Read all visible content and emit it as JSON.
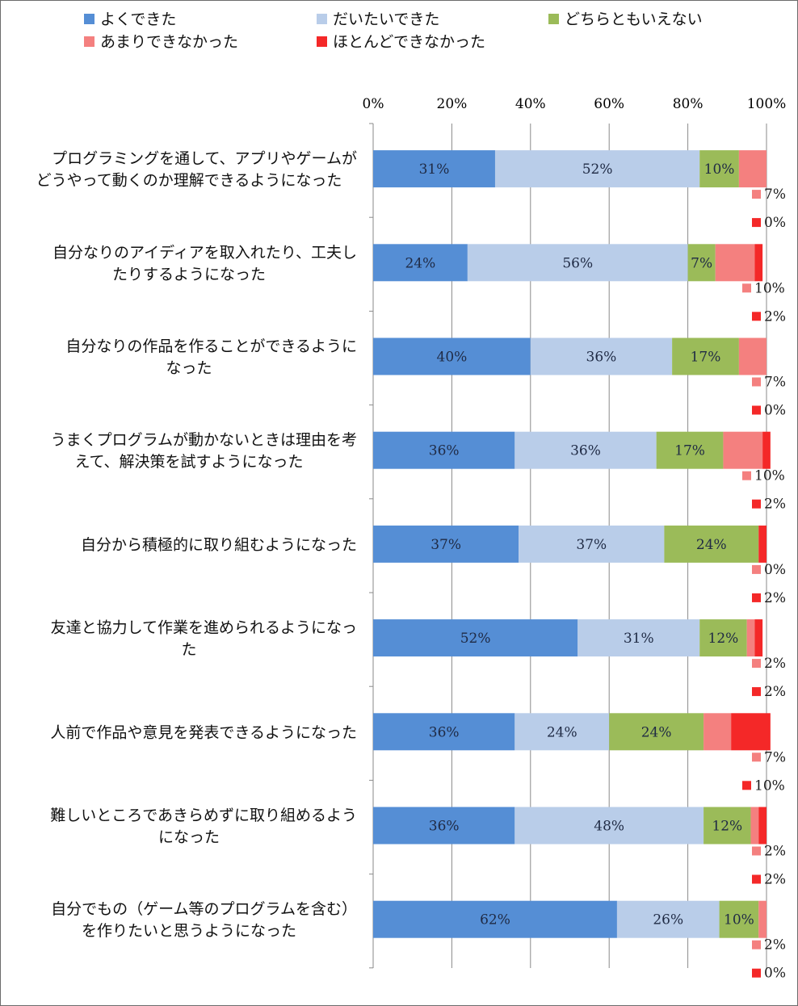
{
  "chart_data": {
    "type": "bar",
    "orientation": "horizontal",
    "stacked": true,
    "normalized": true,
    "xlim": [
      0,
      100
    ],
    "x_ticks": [
      "0%",
      "20%",
      "40%",
      "60%",
      "80%",
      "100%"
    ],
    "grid": true,
    "legend_position": "top-left",
    "categories": [
      [
        "プログラミングを通して、アプリやゲームが",
        "どうやって動くのか理解できるようになった"
      ],
      [
        "自分なりのアイディアを取入れたり、工夫し",
        "たりするようになった"
      ],
      [
        "自分なりの作品を作ることができるように",
        "なった"
      ],
      [
        "うまくプログラムが動かないときは理由を考",
        "えて、解決策を試すようになった"
      ],
      [
        "自分から積極的に取り組むようになった"
      ],
      [
        "友達と協力して作業を進められるようになっ",
        "た"
      ],
      [
        "人前で作品や意見を発表できるようになった"
      ],
      [
        "難しいところであきらめずに取り組めるよう",
        "になった"
      ],
      [
        "自分でもの（ゲーム等のプログラムを含む）",
        "を作りたいと思うようになった"
      ]
    ],
    "series": [
      {
        "name": "よくできた",
        "color": "#558ed5",
        "values": [
          31,
          24,
          40,
          36,
          37,
          52,
          36,
          36,
          62
        ]
      },
      {
        "name": "だいたいできた",
        "color": "#b9cde9",
        "values": [
          52,
          56,
          36,
          36,
          37,
          31,
          24,
          48,
          26
        ]
      },
      {
        "name": "どちらともいえない",
        "color": "#9bbb59",
        "values": [
          10,
          7,
          17,
          17,
          24,
          12,
          24,
          12,
          10
        ]
      },
      {
        "name": "あまりできなかった",
        "color": "#f4807f",
        "values": [
          7,
          10,
          7,
          10,
          0,
          2,
          7,
          2,
          2
        ]
      },
      {
        "name": "ほとんどできなかった",
        "color": "#f42828",
        "values": [
          0,
          2,
          0,
          2,
          2,
          2,
          10,
          2,
          0
        ]
      }
    ],
    "inside_labels": [
      [
        "31%",
        "52%",
        "10%"
      ],
      [
        "24%",
        "56%",
        "7%"
      ],
      [
        "40%",
        "36%",
        "17%"
      ],
      [
        "36%",
        "36%",
        "17%"
      ],
      [
        "37%",
        "37%",
        "24%"
      ],
      [
        "52%",
        "31%",
        "12%"
      ],
      [
        "36%",
        "24%",
        "24%"
      ],
      [
        "36%",
        "48%",
        "12%"
      ],
      [
        "62%",
        "26%",
        "10%"
      ]
    ],
    "outside_labels": [
      [
        "7%",
        "0%"
      ],
      [
        "10%",
        "2%"
      ],
      [
        "7%",
        "0%"
      ],
      [
        "10%",
        "2%"
      ],
      [
        "0%",
        "2%"
      ],
      [
        "2%",
        "2%"
      ],
      [
        "7%",
        "10%"
      ],
      [
        "2%",
        "2%"
      ],
      [
        "2%",
        "0%"
      ]
    ]
  }
}
